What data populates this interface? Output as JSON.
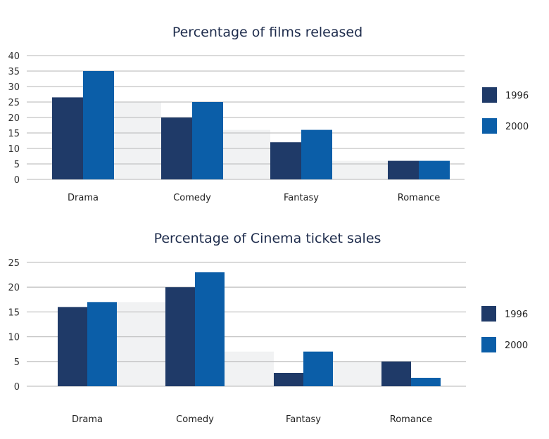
{
  "chart_data": [
    {
      "type": "bar",
      "title": "Percentage of films released",
      "categories": [
        "Drama",
        "Comedy",
        "Fantasy",
        "Romance"
      ],
      "series": [
        {
          "name": "1996",
          "values": [
            26.5,
            20,
            12,
            6
          ],
          "color": "#1f3a68"
        },
        {
          "name": "2000",
          "values": [
            35,
            25,
            16,
            6
          ],
          "color": "#0b5ea8"
        }
      ],
      "yticks": [
        "0",
        "5",
        "10",
        "15",
        "20",
        "25",
        "30",
        "35",
        "40"
      ],
      "ylim": [
        0,
        40
      ],
      "grid": true,
      "legend": "right"
    },
    {
      "type": "bar",
      "title": "Percentage of Cinema ticket sales",
      "categories": [
        "Drama",
        "Comedy",
        "Fantasy",
        "Romance"
      ],
      "series": [
        {
          "name": "1996",
          "values": [
            16,
            20,
            2.7,
            5
          ],
          "color": "#1f3a68"
        },
        {
          "name": "2000",
          "values": [
            17,
            23,
            7,
            1.7
          ],
          "color": "#0b5ea8"
        }
      ],
      "yticks": [
        "0",
        "5",
        "10",
        "15",
        "20",
        "25"
      ],
      "ylim": [
        0,
        25
      ],
      "grid": true,
      "legend": "right"
    }
  ]
}
